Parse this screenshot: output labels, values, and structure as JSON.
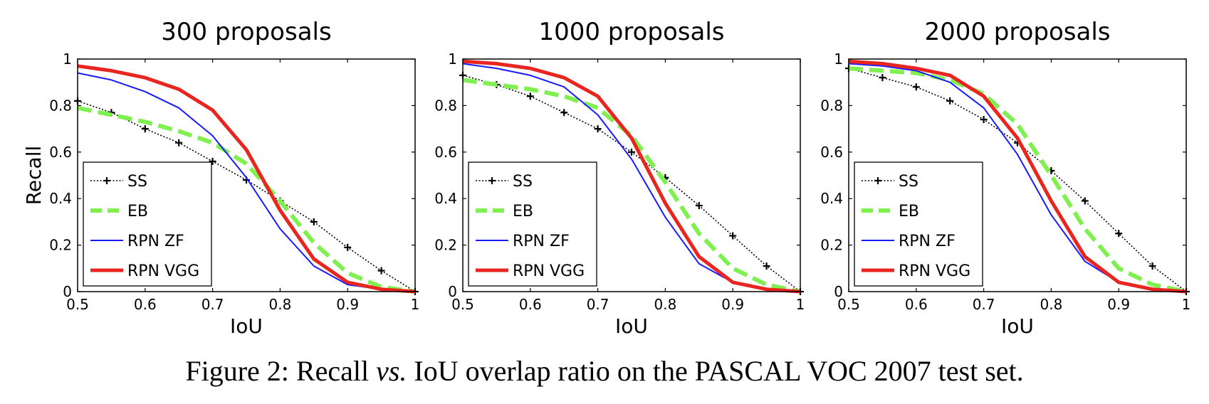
{
  "figure": {
    "caption_prefix": "Figure 2: Recall",
    "caption_italic": "vs.",
    "caption_suffix": "IoU overlap ratio on the PASCAL VOC 2007 test set."
  },
  "colors": {
    "SS": "#000000",
    "EB": "#80f050",
    "RPN ZF": "#1a1aff",
    "RPN VGG": "#e8251e"
  },
  "chart_data": [
    {
      "type": "line",
      "title": "300 proposals",
      "xlabel": "IoU",
      "ylabel": "Recall",
      "xlim": [
        0.5,
        1
      ],
      "ylim": [
        0,
        1
      ],
      "xticks": [
        "0.5",
        "0.6",
        "0.7",
        "0.8",
        "0.9",
        "1"
      ],
      "yticks": [
        "0",
        "0.2",
        "0.4",
        "0.6",
        "0.8",
        "1"
      ],
      "grid": false,
      "legend": "bottom-left",
      "x": [
        0.5,
        0.55,
        0.6,
        0.65,
        0.7,
        0.75,
        0.8,
        0.85,
        0.9,
        0.95,
        1.0
      ],
      "series": [
        {
          "name": "SS",
          "values": [
            0.82,
            0.77,
            0.7,
            0.64,
            0.56,
            0.48,
            0.39,
            0.3,
            0.19,
            0.09,
            0.0
          ]
        },
        {
          "name": "EB",
          "values": [
            0.79,
            0.76,
            0.73,
            0.69,
            0.64,
            0.55,
            0.39,
            0.21,
            0.08,
            0.02,
            0.0
          ]
        },
        {
          "name": "RPN ZF",
          "values": [
            0.94,
            0.91,
            0.86,
            0.79,
            0.67,
            0.49,
            0.27,
            0.11,
            0.03,
            0.01,
            0.0
          ]
        },
        {
          "name": "RPN VGG",
          "values": [
            0.97,
            0.95,
            0.92,
            0.87,
            0.78,
            0.61,
            0.35,
            0.14,
            0.04,
            0.01,
            0.0
          ]
        }
      ]
    },
    {
      "type": "line",
      "title": "1000 proposals",
      "xlabel": "IoU",
      "ylabel": "",
      "xlim": [
        0.5,
        1
      ],
      "ylim": [
        0,
        1
      ],
      "xticks": [
        "0.5",
        "0.6",
        "0.7",
        "0.8",
        "0.9",
        "1"
      ],
      "yticks": [
        "0",
        "0.2",
        "0.4",
        "0.6",
        "0.8",
        "1"
      ],
      "grid": false,
      "legend": "bottom-left",
      "x": [
        0.5,
        0.55,
        0.6,
        0.65,
        0.7,
        0.75,
        0.8,
        0.85,
        0.9,
        0.95,
        1.0
      ],
      "series": [
        {
          "name": "SS",
          "values": [
            0.93,
            0.89,
            0.84,
            0.77,
            0.7,
            0.6,
            0.49,
            0.37,
            0.24,
            0.11,
            0.0
          ]
        },
        {
          "name": "EB",
          "values": [
            0.91,
            0.89,
            0.87,
            0.84,
            0.79,
            0.67,
            0.47,
            0.25,
            0.1,
            0.03,
            0.0
          ]
        },
        {
          "name": "RPN ZF",
          "values": [
            0.98,
            0.96,
            0.93,
            0.88,
            0.76,
            0.57,
            0.32,
            0.12,
            0.04,
            0.01,
            0.0
          ]
        },
        {
          "name": "RPN VGG",
          "values": [
            0.99,
            0.98,
            0.96,
            0.92,
            0.84,
            0.66,
            0.38,
            0.15,
            0.04,
            0.01,
            0.0
          ]
        }
      ]
    },
    {
      "type": "line",
      "title": "2000 proposals",
      "xlabel": "IoU",
      "ylabel": "",
      "xlim": [
        0.5,
        1
      ],
      "ylim": [
        0,
        1
      ],
      "xticks": [
        "0.5",
        "0.6",
        "0.7",
        "0.8",
        "0.9",
        "1"
      ],
      "yticks": [
        "0",
        "0.2",
        "0.4",
        "0.6",
        "0.8",
        "1"
      ],
      "grid": false,
      "legend": "bottom-left",
      "x": [
        0.5,
        0.55,
        0.6,
        0.65,
        0.7,
        0.75,
        0.8,
        0.85,
        0.9,
        0.95,
        1.0
      ],
      "series": [
        {
          "name": "SS",
          "values": [
            0.96,
            0.92,
            0.88,
            0.82,
            0.74,
            0.64,
            0.52,
            0.39,
            0.25,
            0.11,
            0.0
          ]
        },
        {
          "name": "EB",
          "values": [
            0.96,
            0.95,
            0.94,
            0.91,
            0.85,
            0.72,
            0.5,
            0.27,
            0.1,
            0.03,
            0.0
          ]
        },
        {
          "name": "RPN ZF",
          "values": [
            0.98,
            0.97,
            0.95,
            0.9,
            0.79,
            0.59,
            0.33,
            0.13,
            0.04,
            0.01,
            0.0
          ]
        },
        {
          "name": "RPN VGG",
          "values": [
            0.99,
            0.98,
            0.96,
            0.93,
            0.84,
            0.66,
            0.39,
            0.15,
            0.04,
            0.01,
            0.0
          ]
        }
      ]
    }
  ]
}
